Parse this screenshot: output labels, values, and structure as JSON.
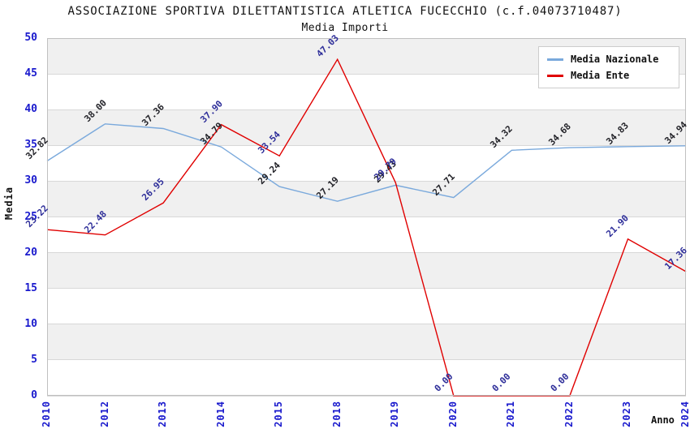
{
  "chart_data": {
    "type": "line",
    "title": "ASSOCIAZIONE SPORTIVA DILETTANTISTICA ATLETICA FUCECCHIO (c.f.04073710487)",
    "subtitle": "Media Importi",
    "xlabel": "Anno",
    "ylabel": "Media",
    "ylim": [
      0,
      50
    ],
    "y_ticks": [
      0,
      5,
      10,
      15,
      20,
      25,
      30,
      35,
      40,
      45,
      50
    ],
    "categories": [
      "2010",
      "2012",
      "2013",
      "2014",
      "2015",
      "2018",
      "2019",
      "2020",
      "2021",
      "2022",
      "2023",
      "2024"
    ],
    "series": [
      {
        "name": "Media Nazionale",
        "color": "#7aa9dc",
        "label_color": "#222228",
        "values": [
          32.82,
          38.0,
          37.36,
          34.79,
          29.24,
          27.19,
          29.43,
          27.71,
          34.32,
          34.68,
          34.83,
          34.94
        ]
      },
      {
        "name": "Media Ente",
        "color": "#e00000",
        "label_color": "#2d2d99",
        "values": [
          23.22,
          22.48,
          26.95,
          37.9,
          33.54,
          47.03,
          29.79,
          0.0,
          0.0,
          0.0,
          21.9,
          17.36
        ]
      }
    ],
    "legend_position": "top-right",
    "grid": "horizontal",
    "band_colors": [
      "#ffffff",
      "#f0f0f0"
    ],
    "tick_color": "#1a1acd",
    "gridline_color": "#d8d8d8",
    "frame_color": "#c0c0c0"
  }
}
